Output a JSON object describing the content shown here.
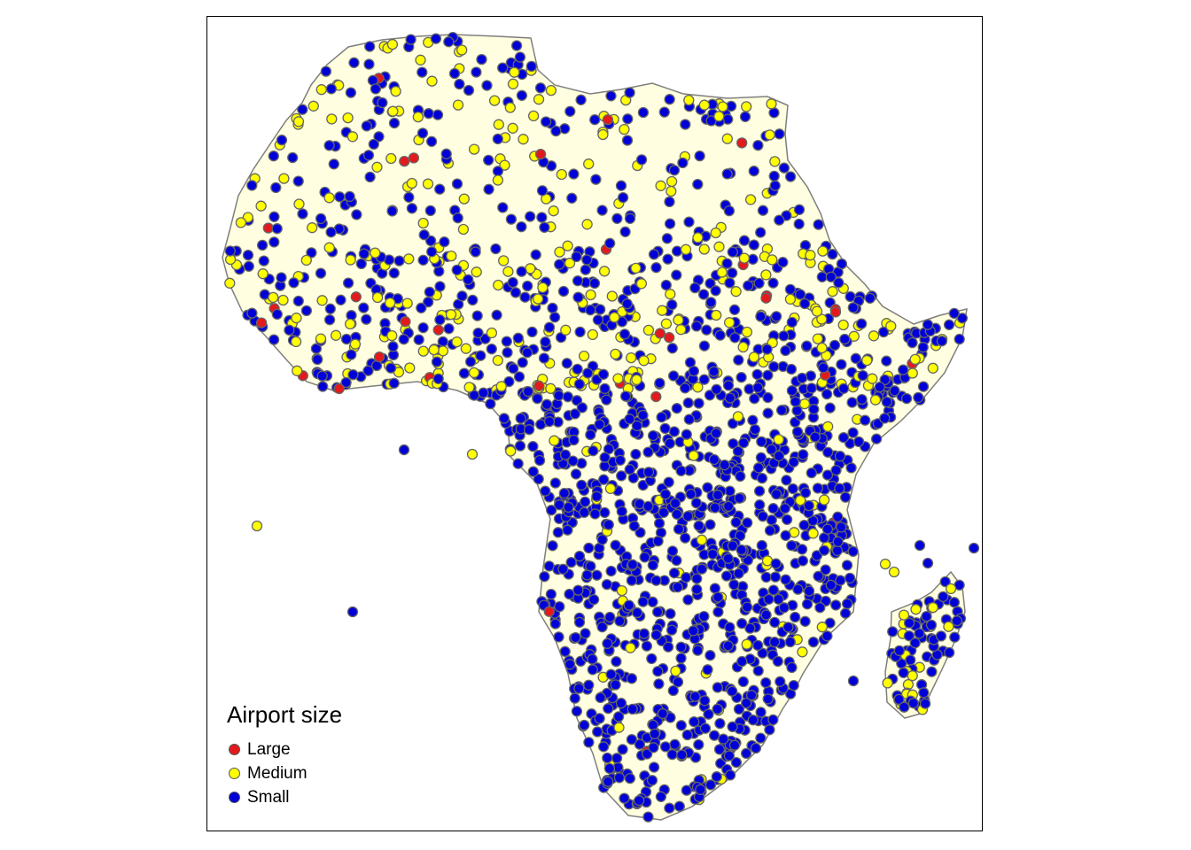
{
  "map": {
    "region": "Africa",
    "land_color": "#fffee0",
    "coast_color": "#7f7f7f",
    "background": "#ffffff",
    "marker_stroke": "#666666"
  },
  "legend": {
    "title": "Airport size",
    "items": [
      {
        "label": "Large",
        "color": "#e31a1c"
      },
      {
        "label": "Medium",
        "color": "#ffff00"
      },
      {
        "label": "Small",
        "color": "#0000d8"
      }
    ]
  }
}
